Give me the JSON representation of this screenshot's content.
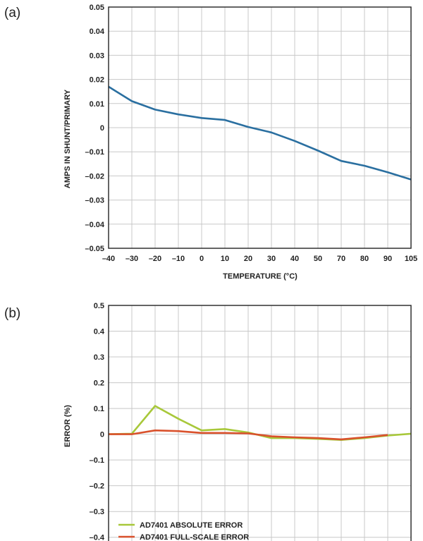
{
  "panels": [
    {
      "label": "(a)",
      "chart_data": {
        "type": "line",
        "xlabel": "TEMPERATURE (°C)",
        "ylabel": "AMPS IN SHUNT/PRIMARY",
        "x_ticks": [
          -40,
          -30,
          -20,
          -10,
          0,
          10,
          20,
          30,
          40,
          50,
          70,
          80,
          90,
          105
        ],
        "y_ticks": [
          0.05,
          0.04,
          0.03,
          0.02,
          0.01,
          0,
          -0.01,
          -0.02,
          -0.03,
          -0.04,
          -0.05
        ],
        "y_tick_labels": [
          "0.05",
          "0.04",
          "0.03",
          "0.02",
          "0.01",
          "0",
          "–0.01",
          "–0.02",
          "–0.03",
          "–0.04",
          "–0.05"
        ],
        "x_tick_labels": [
          "–40",
          "–30",
          "–20",
          "–10",
          "0",
          "10",
          "20",
          "30",
          "40",
          "50",
          "70",
          "80",
          "90",
          "105"
        ],
        "ylim": [
          -0.05,
          0.05
        ],
        "grid": true,
        "series": [
          {
            "color": "#2a6fa0",
            "x": [
              -40,
              -30,
              -20,
              -10,
              0,
              10,
              20,
              30,
              40,
              50,
              70,
              80,
              90,
              105
            ],
            "y": [
              0.017,
              0.011,
              0.0075,
              0.0055,
              0.004,
              0.0032,
              0.0003,
              -0.002,
              -0.0055,
              -0.0095,
              -0.0138,
              -0.0158,
              -0.0185,
              -0.0215
            ]
          }
        ]
      }
    },
    {
      "label": "(b)",
      "chart_data": {
        "type": "line",
        "xlabel": "",
        "ylabel": "ERROR (%)",
        "y_ticks": [
          0.5,
          0.4,
          0.3,
          0.2,
          0.1,
          0,
          -0.1,
          -0.2,
          -0.3,
          -0.4
        ],
        "y_tick_labels": [
          "0.5",
          "0.4",
          "0.3",
          "0.2",
          "0.1",
          "0",
          "–0.1",
          "–0.2",
          "–0.3",
          "–0.4"
        ],
        "ylim": [
          -0.45,
          0.5
        ],
        "grid": true,
        "legend_position": "bottom-left",
        "series": [
          {
            "name": "AD7401 ABSOLUTE ERROR",
            "color": "#a8c83a",
            "x_index": [
              0,
              1,
              2,
              3,
              4,
              5,
              6,
              7,
              8,
              9,
              10,
              11,
              12,
              13
            ],
            "y": [
              0,
              0.002,
              0.11,
              0.06,
              0.015,
              0.02,
              0.007,
              -0.015,
              -0.015,
              -0.018,
              -0.022,
              -0.015,
              -0.005,
              0.002
            ]
          },
          {
            "name": "AD7401 FULL-SCALE ERROR",
            "color": "#d9512c",
            "x_index": [
              0,
              1,
              2,
              3,
              4,
              5,
              6,
              7,
              8,
              9,
              10,
              11,
              12
            ],
            "y": [
              0,
              0,
              0.015,
              0.012,
              0.005,
              0.005,
              0.003,
              -0.008,
              -0.012,
              -0.015,
              -0.02,
              -0.012,
              -0.003
            ]
          }
        ]
      }
    }
  ]
}
